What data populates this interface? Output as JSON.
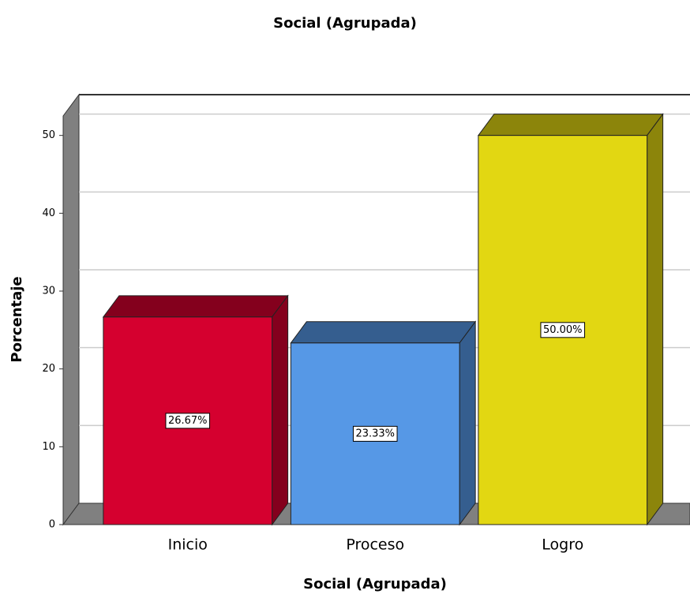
{
  "chart_data": {
    "type": "bar3d",
    "title": "Social (Agrupada)",
    "x_label": "Social (Agrupada)",
    "y_label": "Porcentaje",
    "categories": [
      "Inicio",
      "Proceso",
      "Logro"
    ],
    "values": [
      26.67,
      23.33,
      50.0
    ],
    "value_labels": [
      "26.67%",
      "23.33%",
      "50.00%"
    ],
    "colors": [
      "#d5002f",
      "#5698e6",
      "#e2d712"
    ],
    "ylim": [
      0,
      52.5
    ],
    "yticks": [
      0,
      10,
      20,
      30,
      40,
      50
    ],
    "grid": true
  }
}
